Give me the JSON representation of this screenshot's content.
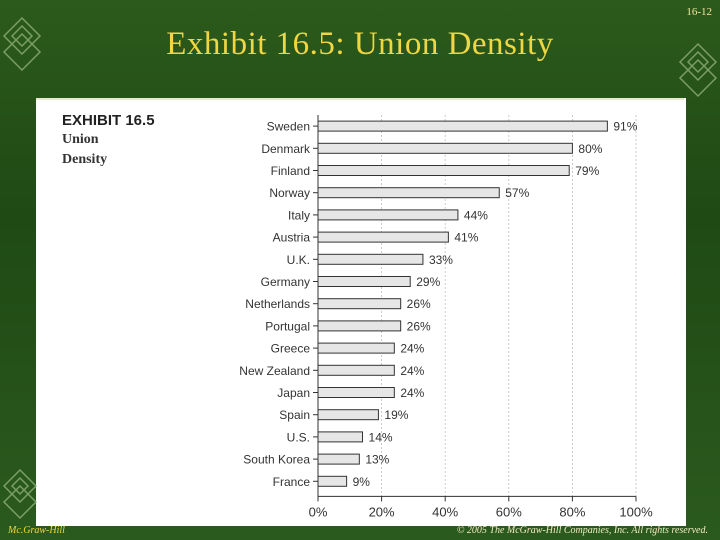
{
  "slide": {
    "number": "16-12",
    "title": "Exhibit 16.5: Union Density",
    "footer_left": "Mc.Graw-Hill",
    "footer_right": "© 2005 The McGraw-Hill Companies, Inc. All rights reserved."
  },
  "exhibit": {
    "label": "EXHIBIT 16.5",
    "title_line1": "Union",
    "title_line2": "Density"
  },
  "chart_data": {
    "type": "bar",
    "orientation": "horizontal",
    "title": "Union Density",
    "categories": [
      "Sweden",
      "Denmark",
      "Finland",
      "Norway",
      "Italy",
      "Austria",
      "U.K.",
      "Germany",
      "Netherlands",
      "Portugal",
      "Greece",
      "New Zealand",
      "Japan",
      "Spain",
      "U.S.",
      "South Korea",
      "France"
    ],
    "values": [
      91,
      80,
      79,
      57,
      44,
      41,
      33,
      29,
      26,
      26,
      24,
      24,
      24,
      19,
      14,
      13,
      9
    ],
    "data_labels": [
      "91%",
      "80%",
      "79%",
      "57%",
      "44%",
      "41%",
      "33%",
      "29%",
      "26%",
      "26%",
      "24%",
      "24%",
      "24%",
      "19%",
      "14%",
      "13%",
      "9%"
    ],
    "xlim": [
      0,
      100
    ],
    "x_ticks": [
      0,
      20,
      40,
      60,
      80,
      100
    ],
    "x_tick_labels": [
      "0%",
      "20%",
      "40%",
      "60%",
      "80%",
      "100%"
    ],
    "grid": true,
    "bar_color": "#e6e6e6",
    "bar_edge_color": "#333333"
  },
  "colors": {
    "background": "#2a561b",
    "title": "#f0d642"
  }
}
